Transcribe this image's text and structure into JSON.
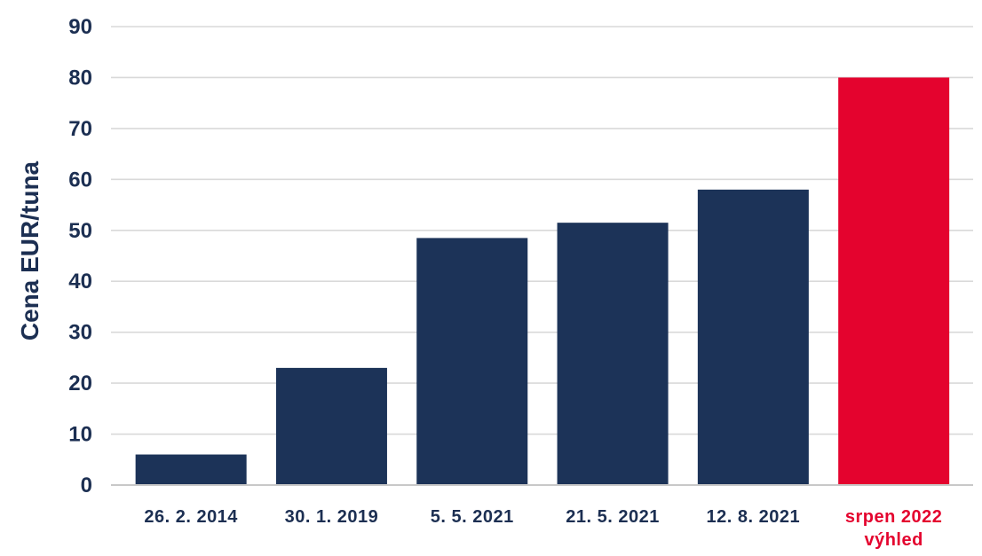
{
  "chart_data": {
    "type": "bar",
    "title": "",
    "xlabel": "",
    "ylabel": "Cena EUR/tuna",
    "ylim": [
      0,
      90
    ],
    "yticks": [
      0,
      10,
      20,
      30,
      40,
      50,
      60,
      70,
      80,
      90
    ],
    "grid": true,
    "legend": "none",
    "categories": [
      [
        "26. 2. 2014"
      ],
      [
        "30. 1. 2019"
      ],
      [
        "5. 5. 2021"
      ],
      [
        "21. 5. 2021"
      ],
      [
        "12. 8. 2021"
      ],
      [
        "srpen 2022",
        "výhled"
      ]
    ],
    "values": [
      6,
      23,
      48.5,
      51.5,
      58,
      80
    ],
    "bar_colors": [
      "#1c3358",
      "#1c3358",
      "#1c3358",
      "#1c3358",
      "#1c3358",
      "#e4032e"
    ],
    "label_colors": [
      "#1c2f52",
      "#1c2f52",
      "#1c2f52",
      "#1c2f52",
      "#1c2f52",
      "#e4032e"
    ]
  }
}
